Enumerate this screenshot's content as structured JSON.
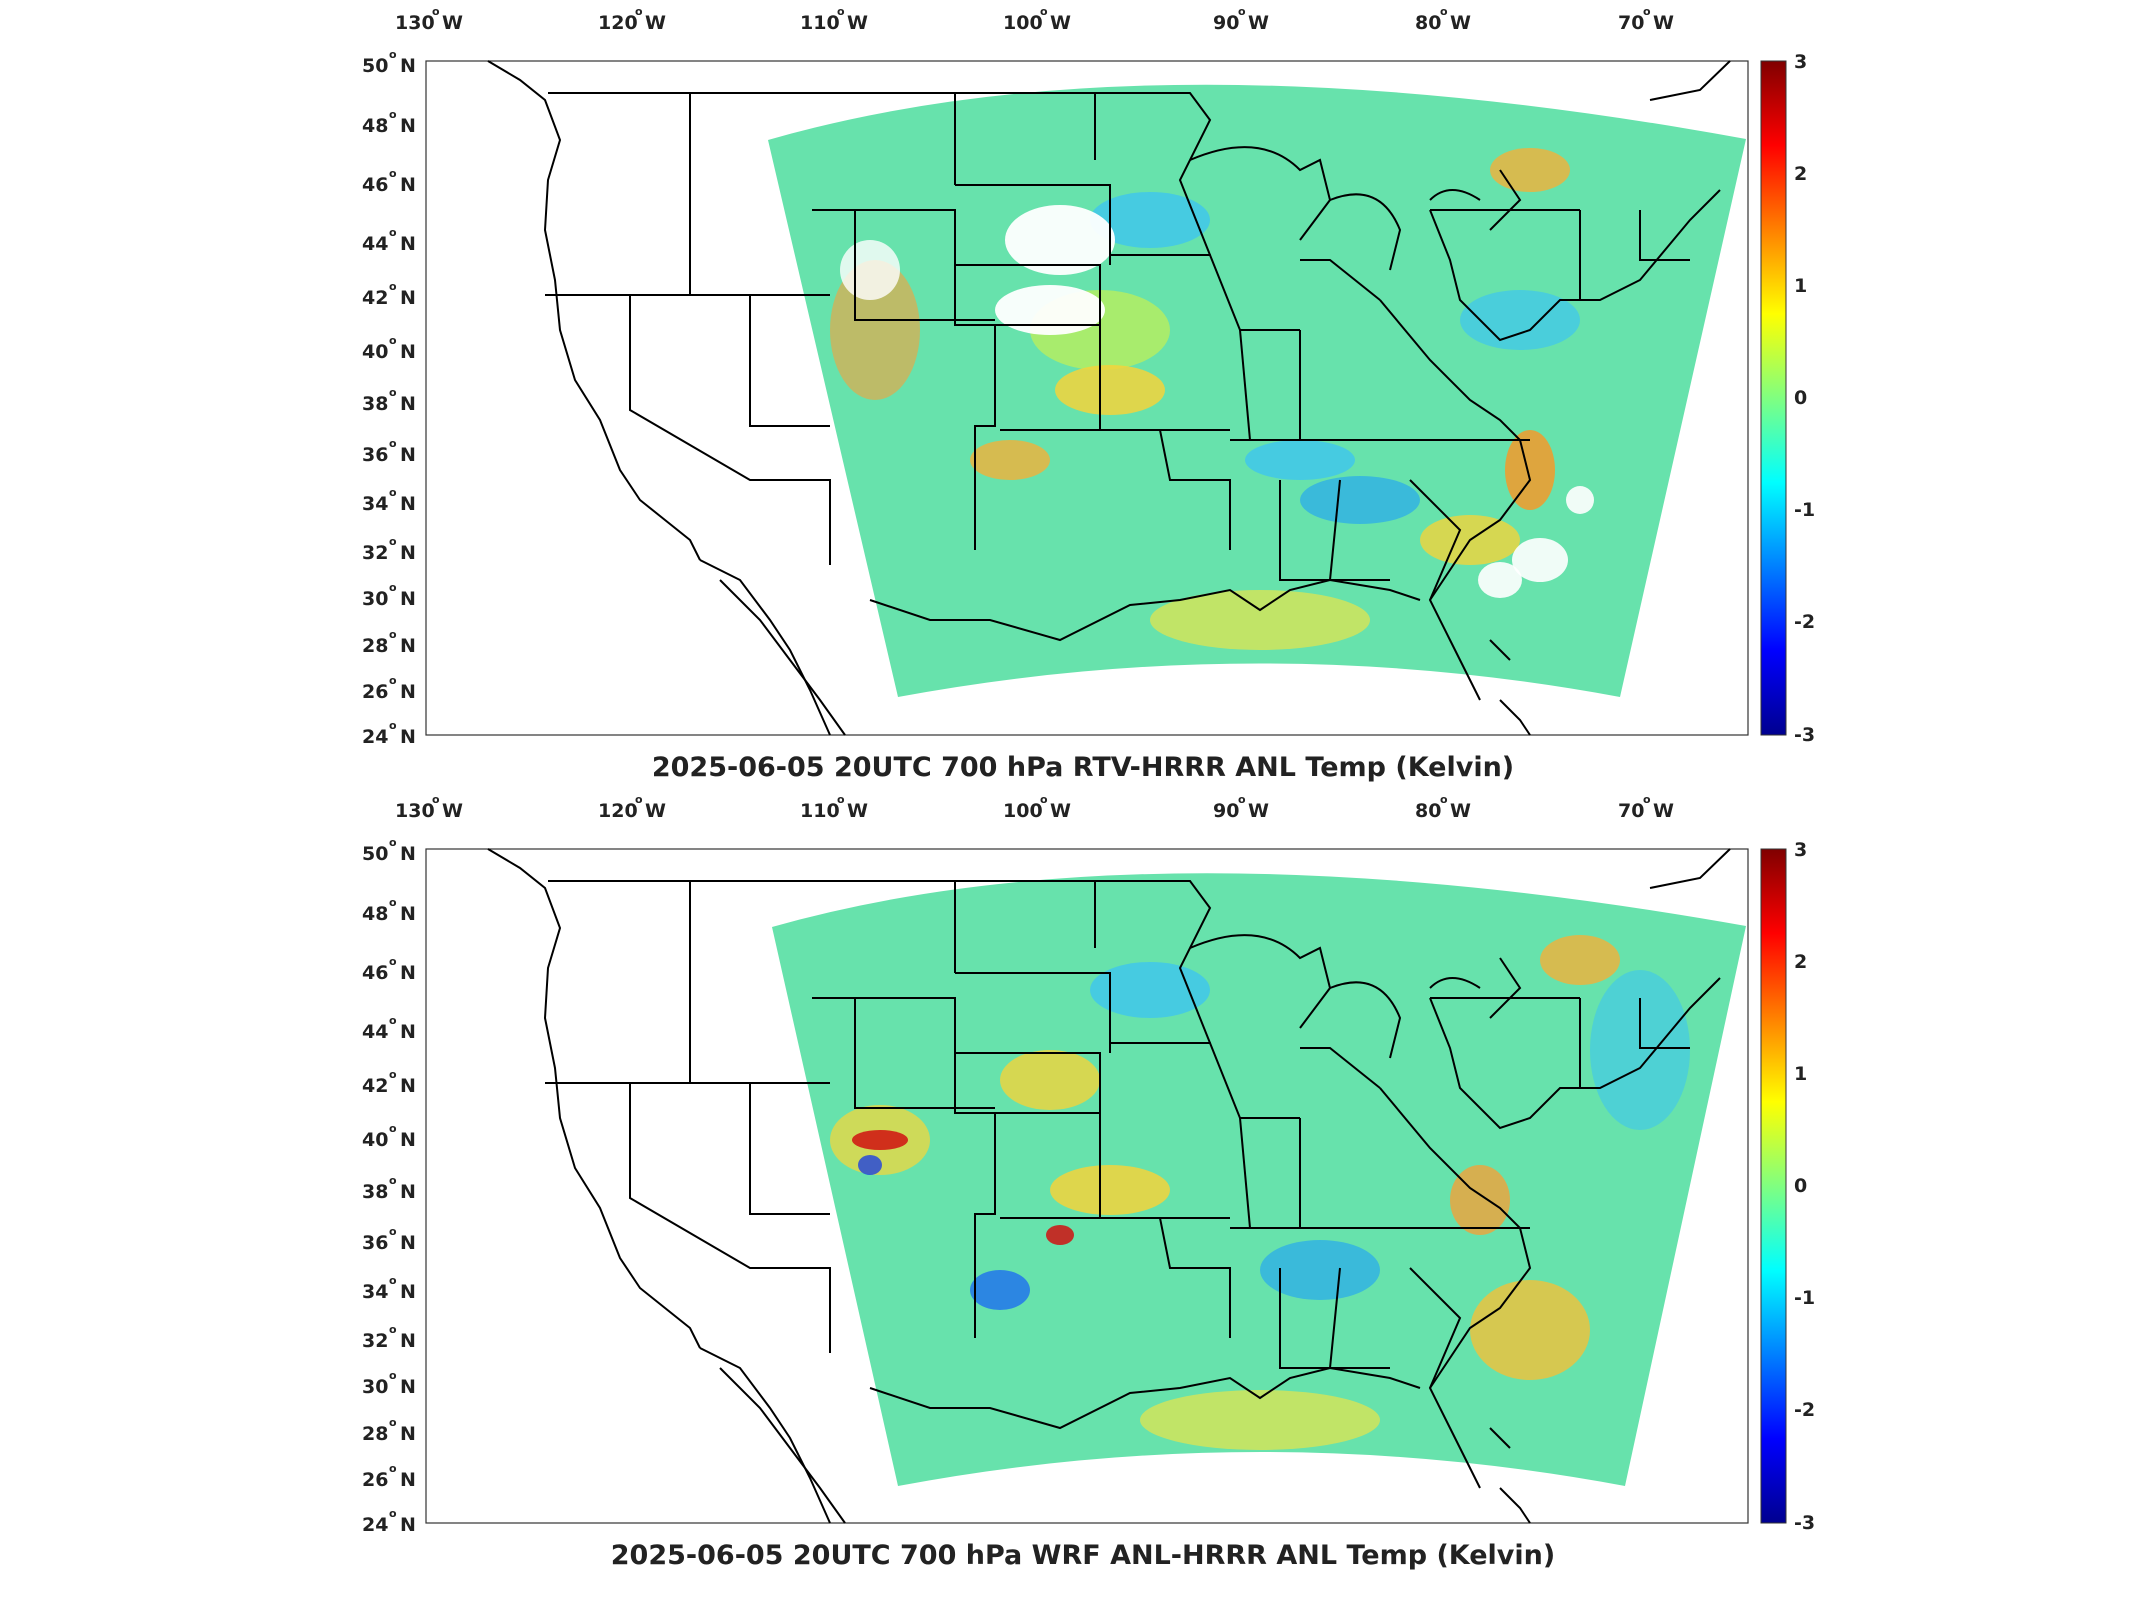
{
  "panels": [
    {
      "title": "2025-06-05 20UTC 700 hPa RTV-HRRR ANL Temp (Kelvin)",
      "lon_ticks": [
        "130",
        "120",
        "110",
        "100",
        "90",
        "80",
        "70"
      ],
      "lon_suffix": "W",
      "lat_ticks": [
        "50",
        "48",
        "46",
        "44",
        "42",
        "40",
        "38",
        "36",
        "34",
        "32",
        "30",
        "28",
        "26",
        "24"
      ],
      "lat_suffix": "N",
      "colorbar_ticks": [
        "3",
        "2",
        "1",
        "0",
        "-1",
        "-2",
        "-3"
      ]
    },
    {
      "title": "2025-06-05 20UTC 700 hPa WRF ANL-HRRR ANL Temp (Kelvin)",
      "lon_ticks": [
        "130",
        "120",
        "110",
        "100",
        "90",
        "80",
        "70"
      ],
      "lon_suffix": "W",
      "lat_ticks": [
        "50",
        "48",
        "46",
        "44",
        "42",
        "40",
        "38",
        "36",
        "34",
        "32",
        "30",
        "28",
        "26",
        "24"
      ],
      "lat_suffix": "N",
      "colorbar_ticks": [
        "3",
        "2",
        "1",
        "0",
        "-1",
        "-2",
        "-3"
      ]
    }
  ],
  "colormap": [
    "#00008f",
    "#0000ff",
    "#0080ff",
    "#00ffff",
    "#80ff80",
    "#ffff00",
    "#ff8000",
    "#ff0000",
    "#800000"
  ],
  "field_base_color": "#5fe0a8"
}
